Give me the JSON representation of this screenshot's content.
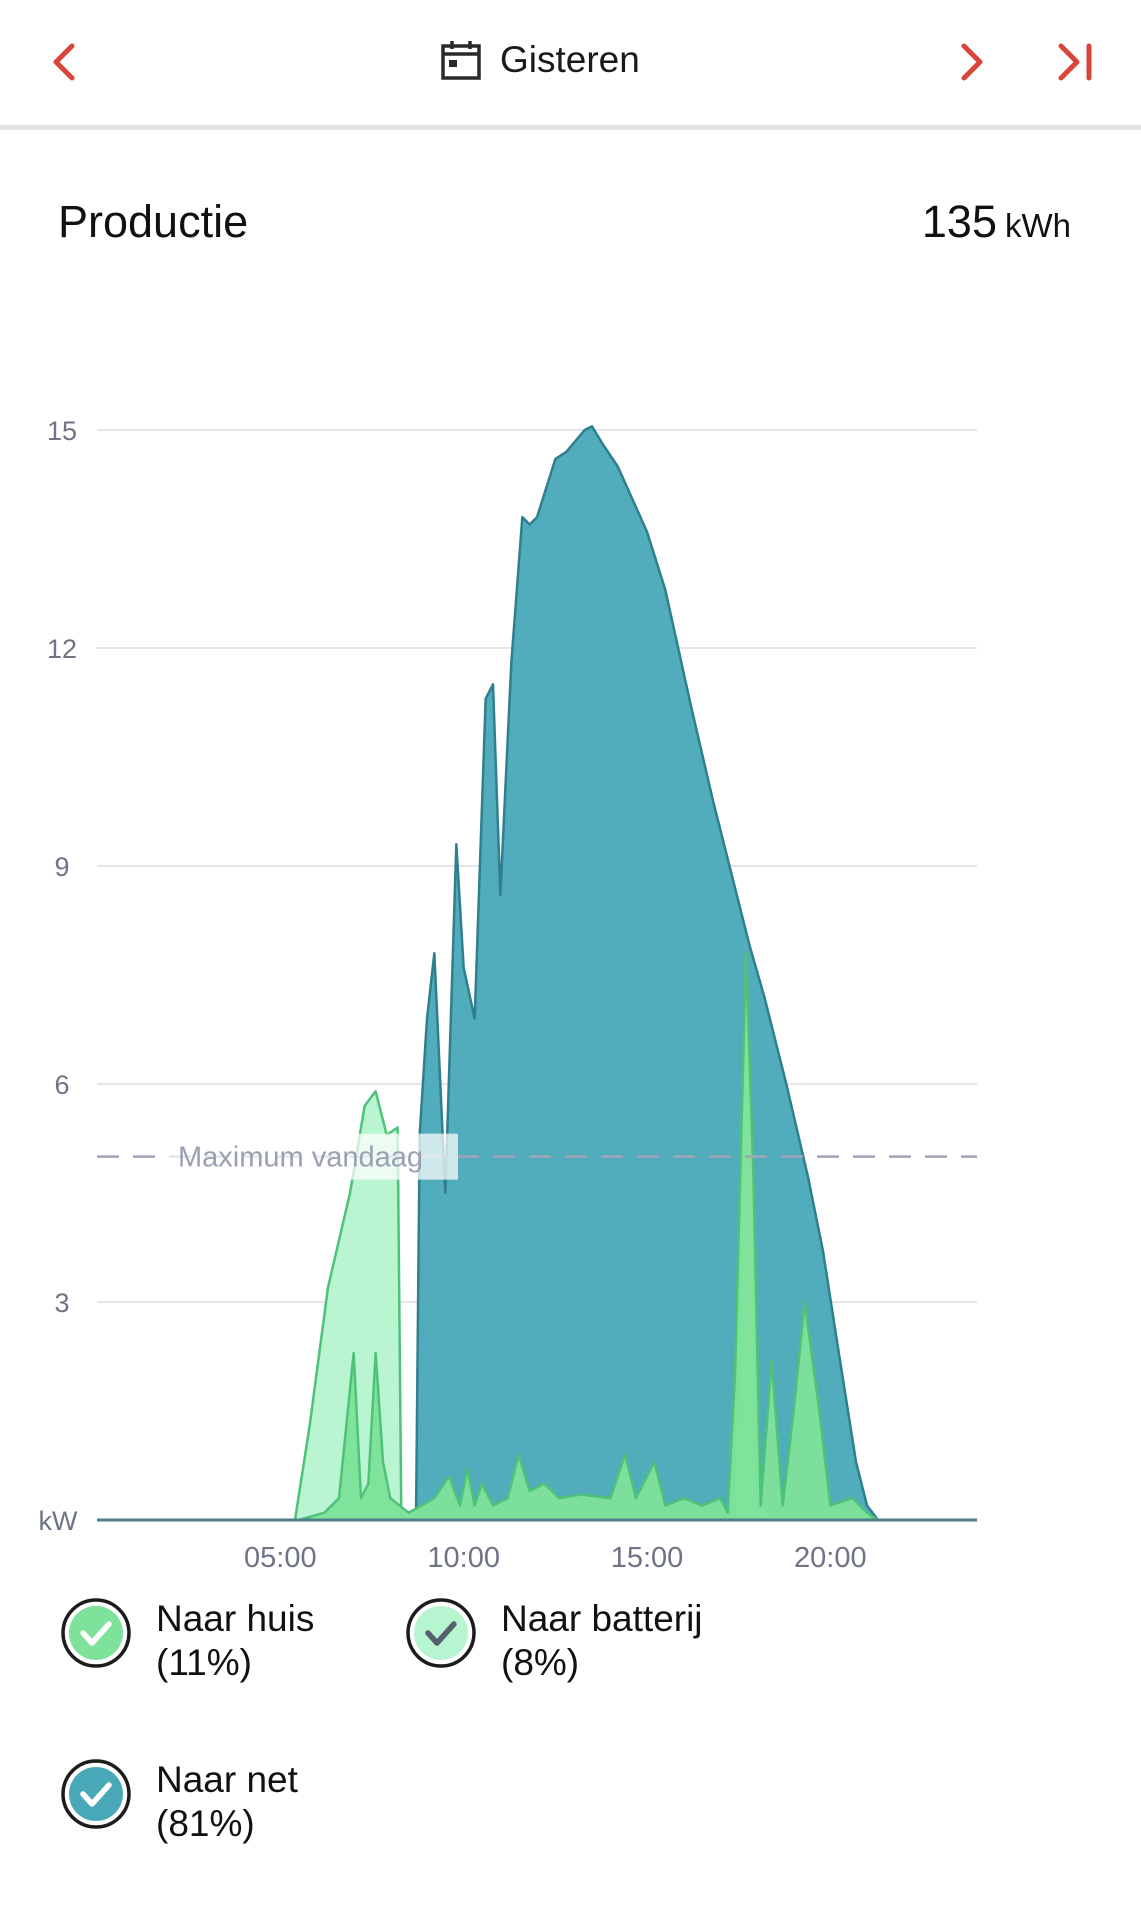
{
  "header": {
    "title": "Gisteren",
    "accent_color": "#d9453a"
  },
  "summary": {
    "title": "Productie",
    "total_value": "135",
    "total_unit": "kWh"
  },
  "chart_data": {
    "type": "area",
    "unit_label": "kW",
    "x_unit": "hour",
    "xlim": [
      0,
      24
    ],
    "ylim": [
      0,
      15
    ],
    "y_ticks": [
      3,
      6,
      9,
      12,
      15
    ],
    "x_ticks": [
      "05:00",
      "10:00",
      "15:00",
      "20:00"
    ],
    "x_tick_values": [
      5,
      10,
      15,
      20
    ],
    "reference_line": {
      "label": "Maximum vandaag",
      "value": 5.0,
      "style": "dashed",
      "color": "#a0a4b8"
    },
    "grid": true,
    "series": [
      {
        "name": "Naar net",
        "color": "#4aa9b8",
        "points": [
          [
            0,
            0
          ],
          [
            5.4,
            0
          ],
          [
            8.7,
            0
          ],
          [
            8.8,
            5.3
          ],
          [
            9.0,
            6.9
          ],
          [
            9.2,
            7.8
          ],
          [
            9.5,
            4.5
          ],
          [
            9.8,
            9.3
          ],
          [
            10.0,
            7.6
          ],
          [
            10.3,
            6.9
          ],
          [
            10.6,
            11.3
          ],
          [
            10.8,
            11.5
          ],
          [
            11.0,
            8.6
          ],
          [
            11.3,
            11.8
          ],
          [
            11.6,
            13.8
          ],
          [
            11.8,
            13.7
          ],
          [
            12.0,
            13.8
          ],
          [
            12.5,
            14.6
          ],
          [
            12.8,
            14.7
          ],
          [
            13.3,
            15.0
          ],
          [
            13.5,
            15.05
          ],
          [
            13.8,
            14.8
          ],
          [
            14.2,
            14.5
          ],
          [
            15.0,
            13.6
          ],
          [
            15.5,
            12.8
          ],
          [
            16.2,
            11.2
          ],
          [
            16.8,
            9.9
          ],
          [
            17.5,
            8.5
          ],
          [
            17.8,
            7.9
          ],
          [
            18.2,
            7.2
          ],
          [
            18.8,
            6.0
          ],
          [
            19.4,
            4.7
          ],
          [
            19.8,
            3.7
          ],
          [
            20.2,
            2.4
          ],
          [
            20.7,
            0.8
          ],
          [
            21.0,
            0.2
          ],
          [
            21.3,
            0
          ],
          [
            24,
            0
          ]
        ]
      },
      {
        "name": "Naar batterij",
        "color": "#b6f5cf",
        "points": [
          [
            0,
            0
          ],
          [
            5.4,
            0
          ],
          [
            5.8,
            1.3
          ],
          [
            6.3,
            3.2
          ],
          [
            6.9,
            4.5
          ],
          [
            7.3,
            5.7
          ],
          [
            7.6,
            5.9
          ],
          [
            7.9,
            5.3
          ],
          [
            8.2,
            5.4
          ],
          [
            8.3,
            0
          ],
          [
            17.4,
            0
          ],
          [
            17.7,
            7.8
          ],
          [
            17.9,
            4.7
          ],
          [
            18.0,
            0.2
          ],
          [
            18.2,
            0.15
          ],
          [
            18.5,
            0
          ],
          [
            24,
            0
          ]
        ]
      },
      {
        "name": "Naar huis",
        "color": "#7ee29a",
        "points": [
          [
            0,
            0
          ],
          [
            5.5,
            0
          ],
          [
            6.2,
            0.1
          ],
          [
            6.6,
            0.3
          ],
          [
            7.0,
            2.3
          ],
          [
            7.2,
            0.3
          ],
          [
            7.4,
            0.5
          ],
          [
            7.6,
            2.3
          ],
          [
            7.8,
            0.8
          ],
          [
            8.0,
            0.3
          ],
          [
            8.5,
            0.1
          ],
          [
            9.2,
            0.3
          ],
          [
            9.6,
            0.6
          ],
          [
            9.9,
            0.2
          ],
          [
            10.1,
            0.7
          ],
          [
            10.3,
            0.2
          ],
          [
            10.5,
            0.5
          ],
          [
            10.8,
            0.2
          ],
          [
            11.2,
            0.3
          ],
          [
            11.5,
            0.9
          ],
          [
            11.8,
            0.4
          ],
          [
            12.2,
            0.5
          ],
          [
            12.6,
            0.3
          ],
          [
            13.2,
            0.35
          ],
          [
            14.0,
            0.3
          ],
          [
            14.4,
            0.9
          ],
          [
            14.7,
            0.3
          ],
          [
            15.2,
            0.8
          ],
          [
            15.5,
            0.2
          ],
          [
            16.0,
            0.3
          ],
          [
            16.5,
            0.2
          ],
          [
            17.0,
            0.3
          ],
          [
            17.2,
            0.1
          ],
          [
            17.4,
            2.0
          ],
          [
            17.7,
            7.8
          ],
          [
            17.9,
            4.8
          ],
          [
            18.1,
            0.2
          ],
          [
            18.4,
            2.2
          ],
          [
            18.7,
            0.2
          ],
          [
            19.0,
            1.5
          ],
          [
            19.3,
            3.0
          ],
          [
            19.7,
            1.5
          ],
          [
            20.0,
            0.2
          ],
          [
            20.6,
            0.3
          ],
          [
            21.0,
            0.1
          ],
          [
            21.3,
            0
          ],
          [
            24,
            0
          ]
        ]
      }
    ]
  },
  "legend": [
    {
      "label": "Naar huis",
      "percent": "(11%)",
      "fill": "#7ee29a",
      "check_color": "#ffffff",
      "checked": true
    },
    {
      "label": "Naar batterij",
      "percent": "(8%)",
      "fill": "#b6f5cf",
      "check_color": "#55606e",
      "checked": true
    },
    {
      "label": "Naar net",
      "percent": "(81%)",
      "fill": "#4aa9b8",
      "check_color": "#ffffff",
      "checked": true
    }
  ],
  "icons": {
    "prev": "chevron-left-icon",
    "next": "chevron-right-icon",
    "last": "skip-to-end-icon",
    "calendar": "calendar-icon",
    "check": "checkmark-icon"
  }
}
